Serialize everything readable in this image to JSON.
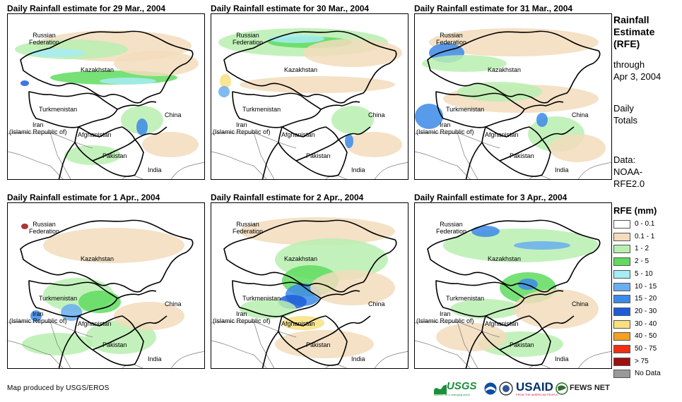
{
  "panels": [
    {
      "title": "Daily Rainfall estimate for 29 Mar., 2004"
    },
    {
      "title": "Daily Rainfall estimate for 30 Mar., 2004"
    },
    {
      "title": "Daily Rainfall estimate for 31 Mar., 2004"
    },
    {
      "title": "Daily Rainfall estimate for 1 Apr., 2004"
    },
    {
      "title": "Daily Rainfall estimate for 2 Apr., 2004"
    },
    {
      "title": "Daily Rainfall estimate for 3 Apr., 2004"
    }
  ],
  "map_labels": {
    "russia_line1": "Russian",
    "russia_line2": "Federation",
    "kazakhstan": "Kazakhstan",
    "turkmenistan": "Turkmenistan",
    "china": "China",
    "iran_line1": "Iran",
    "iran_line2": "(Islamic Republic of)",
    "afghanistan": "Afghanistan",
    "pakistan": "Pakistan",
    "india": "India"
  },
  "sidebar": {
    "title_line1": "Rainfall",
    "title_line2": "Estimate",
    "title_line3": "(RFE)",
    "through_line1": "through",
    "through_line2": "Apr 3, 2004",
    "daily_line1": "Daily",
    "daily_line2": "Totals",
    "data_line1": "Data:",
    "data_line2": "NOAA-",
    "data_line3": "RFE2.0"
  },
  "legend": {
    "title": "RFE (mm)",
    "items": [
      {
        "label": "0 - 0.1",
        "color": "#ffffff"
      },
      {
        "label": "0.1 - 1",
        "color": "#f2dcbc"
      },
      {
        "label": "1 - 2",
        "color": "#b8eeb0"
      },
      {
        "label": "2 - 5",
        "color": "#5fdc5f"
      },
      {
        "label": "5 - 10",
        "color": "#a6ecf5"
      },
      {
        "label": "10 - 15",
        "color": "#6aaef0"
      },
      {
        "label": "15 - 20",
        "color": "#3c8ae8"
      },
      {
        "label": "20 - 30",
        "color": "#1f5ed9"
      },
      {
        "label": "30 - 40",
        "color": "#f8e080"
      },
      {
        "label": "40 - 50",
        "color": "#f5a020"
      },
      {
        "label": "50 - 75",
        "color": "#f03010"
      },
      {
        "label": "> 75",
        "color": "#a01010"
      },
      {
        "label": "No Data",
        "color": "#999999"
      }
    ]
  },
  "footer": {
    "credit": "Map produced by USGS/EROS",
    "logo_usgs": "USGS",
    "logo_usgs_tagline": "science for a changing world",
    "logo_usaid": "USAID",
    "logo_usaid_tagline": "FROM THE AMERICAN PEOPLE",
    "logo_fews": "FEWS NET"
  }
}
